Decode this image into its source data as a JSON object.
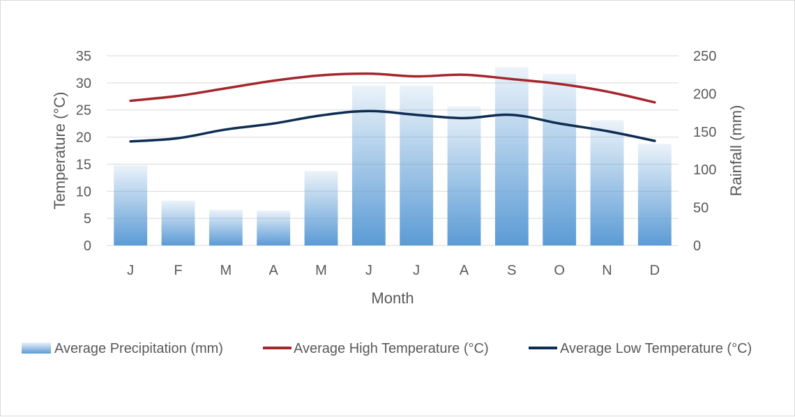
{
  "chart_data": {
    "type": "bar",
    "categories": [
      "J",
      "F",
      "M",
      "A",
      "M",
      "J",
      "J",
      "A",
      "S",
      "O",
      "N",
      "D"
    ],
    "series": [
      {
        "name": "Average Precipitation (mm)",
        "type": "bar",
        "axis": "right",
        "values": [
          106,
          59,
          47,
          46,
          98,
          211,
          211,
          183,
          235,
          226,
          165,
          134
        ],
        "color": "#5b9bd5"
      },
      {
        "name": "Average High Temperature (°C)",
        "type": "line",
        "axis": "left",
        "values": [
          26.7,
          27.6,
          29.0,
          30.4,
          31.4,
          31.7,
          31.2,
          31.5,
          30.7,
          29.8,
          28.4,
          26.4
        ],
        "color": "#a4262c"
      },
      {
        "name": "Average Low Temperature (°C)",
        "type": "line",
        "axis": "left",
        "values": [
          19.2,
          19.8,
          21.4,
          22.5,
          24.0,
          24.8,
          24.1,
          23.5,
          24.1,
          22.5,
          21.1,
          19.3
        ],
        "color": "#0e2d52"
      }
    ],
    "xlabel": "Month",
    "ylabel": "Temperature (°C)",
    "y2label": "Rainfall (mm)",
    "ylim": [
      0,
      35
    ],
    "y2lim": [
      0,
      250
    ],
    "yticks": [
      "0",
      "5",
      "10",
      "15",
      "20",
      "25",
      "30",
      "35"
    ],
    "y2ticks": [
      "0",
      "50",
      "100",
      "150",
      "200",
      "250"
    ],
    "grid": true,
    "legend_position": "bottom"
  }
}
